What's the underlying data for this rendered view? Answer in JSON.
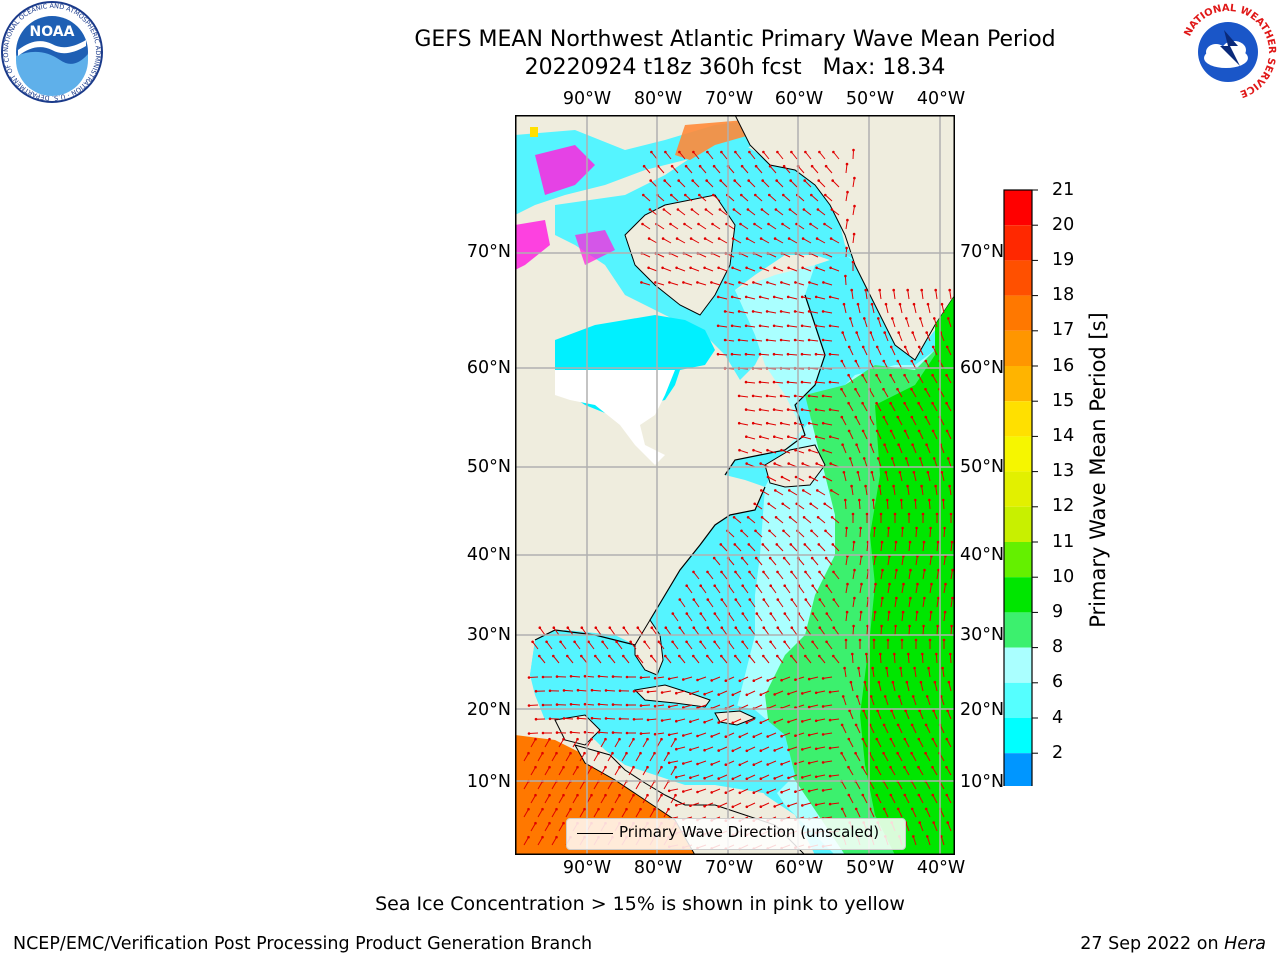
{
  "title": {
    "line1": "GEFS MEAN Northwest Atlantic Primary Wave Mean Period",
    "line2": "20220924 t18z 360h fcst   Max: 18.34"
  },
  "logos": {
    "noaa": "NOAA",
    "noaa_ring": "NATIONAL OCEANIC AND ATMOSPHERIC ADMINISTRATION · U.S. DEPARTMENT OF COMMERCE",
    "nws_ring": "NATIONAL WEATHER SERVICE"
  },
  "map": {
    "lon_ticks": [
      "90°W",
      "80°W",
      "70°W",
      "60°W",
      "50°W",
      "40°W"
    ],
    "lat_ticks": [
      "70°N",
      "60°N",
      "50°N",
      "40°N",
      "30°N",
      "20°N",
      "10°N"
    ],
    "legend": "Primary Wave Direction (unscaled)",
    "colors": {
      "land": "#efedde",
      "grid": "#b0b0b0",
      "arrow": "#e00000",
      "ice": "#ff22e0"
    }
  },
  "colorbar": {
    "label": "Primary Wave Mean Period [s]",
    "ticks": [
      "21",
      "20",
      "19",
      "18",
      "17",
      "16",
      "15",
      "14",
      "13",
      "12",
      "11",
      "10",
      "9",
      "8",
      "6",
      "4",
      "2"
    ],
    "colors": [
      "#ff0000",
      "#ff2800",
      "#ff5000",
      "#ff7800",
      "#ff9600",
      "#ffb400",
      "#ffe000",
      "#f6f600",
      "#e2f000",
      "#c8f000",
      "#64f000",
      "#00e600",
      "#3cf06e",
      "#aaffff",
      "#55ffff",
      "#00ffff",
      "#0096ff"
    ],
    "extend_color": "#0000ff"
  },
  "footer": {
    "note": "Sea Ice Concentration > 15% is shown in pink to yellow",
    "left": "NCEP/EMC/Verification Post Processing Product Generation Branch",
    "date": "27 Sep 2022 on",
    "machine": "Hera"
  }
}
